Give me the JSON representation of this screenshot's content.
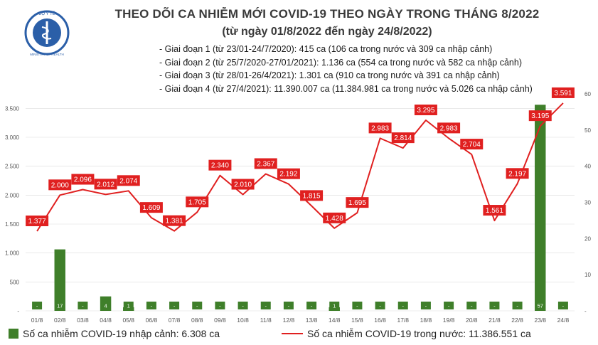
{
  "header": {
    "logo_text_top": "BỘ Y TẾ",
    "logo_text_bottom": "MINISTRY OF HEALTH",
    "title": "THEO DÕI CA NHIỄM MỚI COVID-19 THEO NGÀY TRONG THÁNG 8/2022",
    "subtitle": "(từ ngày 01/8/2022 đến ngày 24/8/2022)"
  },
  "notes": [
    "- Giai đoạn 1 (từ 23/01-24/7/2020): 415 ca (106 ca trong nước và 309 ca nhập cảnh)",
    "- Giai đoạn 2 (từ 25/7/2020-27/01/2021): 1.136 ca (554 ca trong nước và 582 ca nhập cảnh)",
    "- Giai đoạn 3 (từ 28/01-26/4/2021): 1.301 ca (910 ca trong nước và 391 ca nhập cảnh)",
    "- Giai đoạn 4 (từ 27/4/2021): 11.390.007 ca (11.384.981 ca trong nước và 5.026 ca nhập cảnh)"
  ],
  "legend": {
    "bar_label": "Số ca nhiễm COVID-19 nhập cảnh: 6.308 ca",
    "line_label": "Số ca nhiễm COVID-19 trong nước: 11.386.551 ca"
  },
  "colors": {
    "bar": "#3f7f2a",
    "line": "#e02020",
    "label_bg": "#e02020",
    "label_text": "#ffffff",
    "grid": "#dcdcdc",
    "axis_text": "#555555"
  },
  "chart_data": {
    "type": "bar+line",
    "categories": [
      "01/8",
      "02/8",
      "03/8",
      "04/8",
      "05/8",
      "06/8",
      "07/8",
      "08/8",
      "09/8",
      "10/8",
      "11/8",
      "12/8",
      "13/8",
      "14/8",
      "15/8",
      "16/8",
      "17/8",
      "18/8",
      "19/8",
      "20/8",
      "21/8",
      "22/8",
      "23/8",
      "24/8"
    ],
    "y_left": {
      "ticks": [
        "-",
        "500",
        "1.000",
        "1.500",
        "2.000",
        "2.500",
        "3.000",
        "3.500"
      ],
      "ylim": [
        0,
        3750
      ]
    },
    "y_right": {
      "ticks": [
        "-",
        "10",
        "20",
        "30",
        "40",
        "50",
        "60"
      ],
      "ylim": [
        0,
        60
      ]
    },
    "series": [
      {
        "type": "line",
        "axis": "left",
        "values": [
          1377,
          2000,
          2096,
          2012,
          2074,
          1609,
          1381,
          1705,
          2340,
          2010,
          2367,
          2192,
          1815,
          1428,
          1695,
          2983,
          2814,
          3295,
          2983,
          2704,
          1561,
          2197,
          3195,
          3591
        ],
        "labels": [
          "1.377",
          "2.000",
          "2.096",
          "2.012",
          "2.074",
          "1.609",
          "1.381",
          "1.705",
          "2.340",
          "2.010",
          "2.367",
          "2.192",
          "1.815",
          "1.428",
          "1.695",
          "2.983",
          "2.814",
          "3.295",
          "2.983",
          "2.704",
          "1.561",
          "2.197",
          "3.195",
          "3.591"
        ]
      },
      {
        "type": "bar",
        "axis": "right",
        "values": [
          0,
          17,
          0,
          4,
          1,
          0,
          0,
          0,
          0,
          0,
          0,
          0,
          0,
          1,
          0,
          0,
          0,
          0,
          0,
          0,
          0,
          0,
          57,
          0
        ],
        "labels": [
          "-",
          "17",
          "-",
          "4",
          "1",
          "-",
          "-",
          "-",
          "-",
          "-",
          "-",
          "-",
          "-",
          "1",
          "-",
          "-",
          "-",
          "-",
          "-",
          "-",
          "-",
          "-",
          "57",
          "-"
        ]
      }
    ]
  }
}
